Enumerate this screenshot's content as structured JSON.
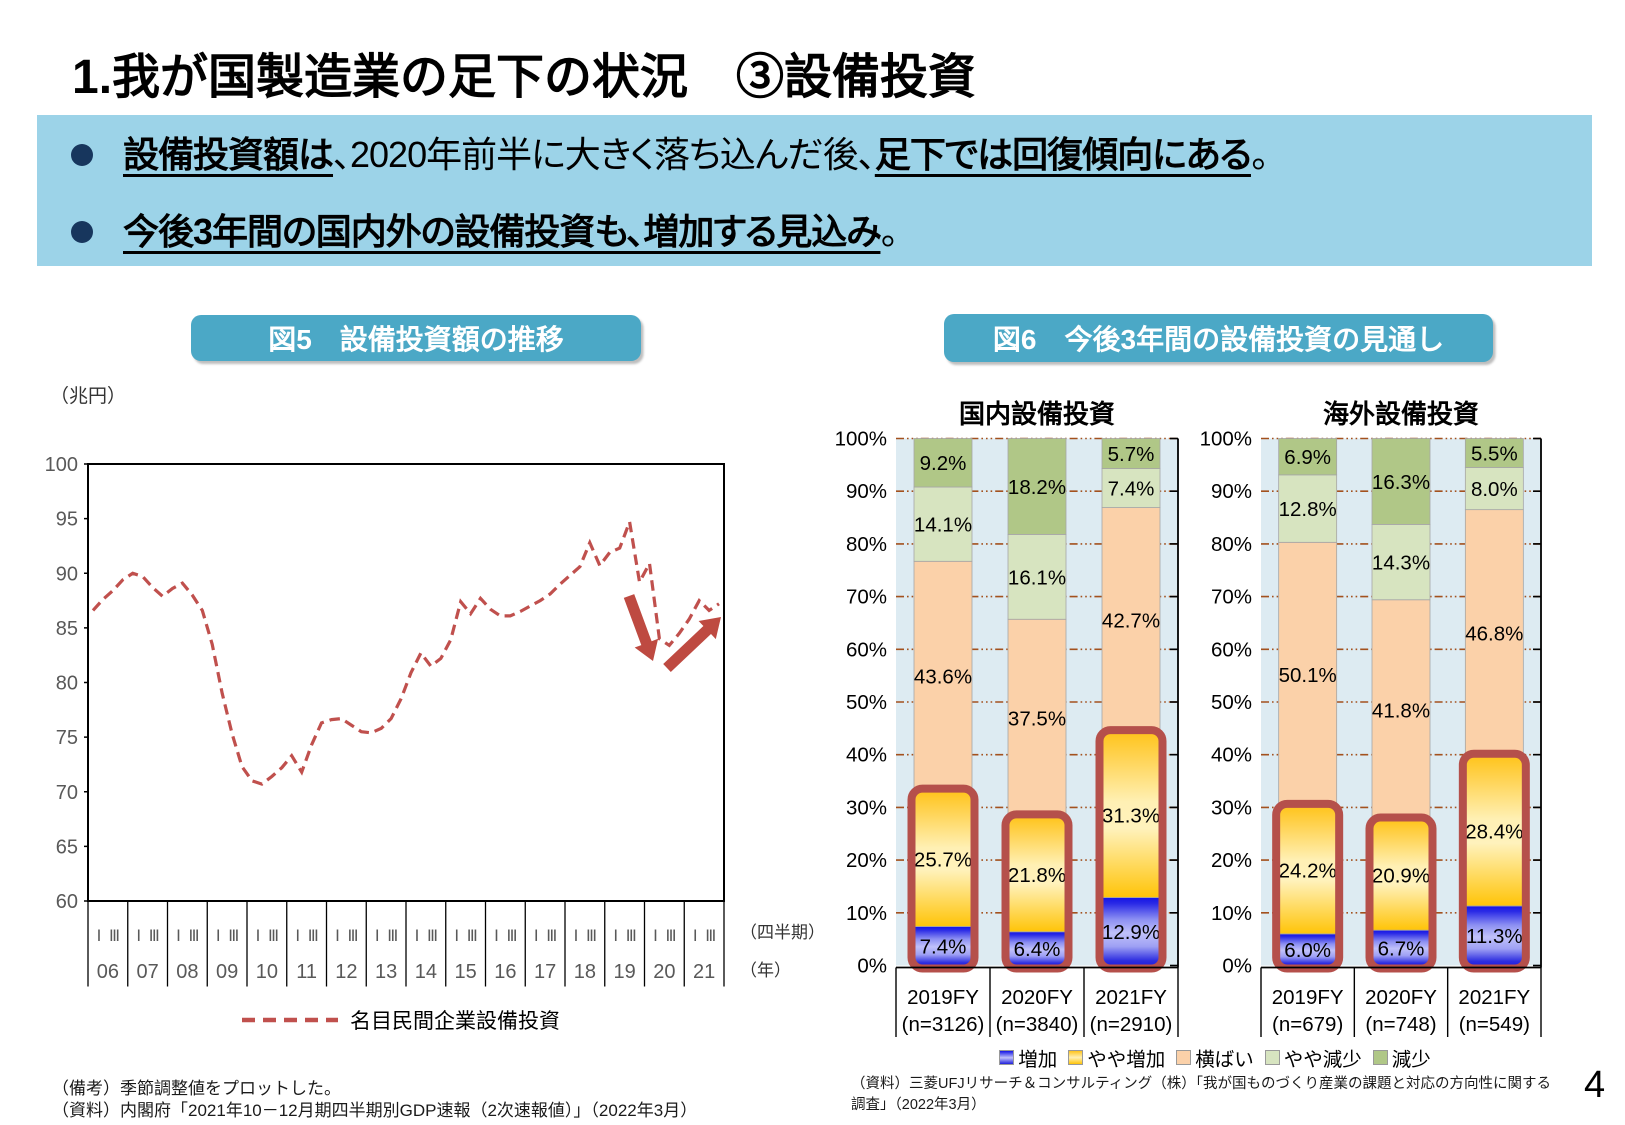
{
  "page": {
    "number": "4",
    "background": "#FFFFFF"
  },
  "header": {
    "title": "1.我が国製造業の足下の状況　③設備投資"
  },
  "summary": {
    "bullets": [
      {
        "segments": [
          {
            "text": "設備投資額は",
            "emphasis": true
          },
          {
            "text": "、2020年前半に大きく落ち込んだ後、",
            "emphasis": false
          },
          {
            "text": "足下では回復傾向にある",
            "emphasis": true
          },
          {
            "text": "。",
            "emphasis": false
          }
        ]
      },
      {
        "segments": [
          {
            "text": "今後3年間の国内外の設備投資も、増加する見込み",
            "emphasis": true
          },
          {
            "text": "。",
            "emphasis": false
          }
        ]
      }
    ]
  },
  "fig5": {
    "header": "図5　設備投資額の推移",
    "unit_label": "（兆円）",
    "axis_quarter_label": "（四半期）",
    "axis_year_label": "（年）",
    "legend_label": "名目民間企業設備投資",
    "notes": [
      "（備考）季節調整値をプロットした。",
      "（資料）内閣府「2021年10－12月期四半期別GDP速報（2次速報値）」（2022年3月）"
    ],
    "chart_data": {
      "type": "line",
      "title": "設備投資額の推移",
      "ylabel": "兆円",
      "ylim": [
        60,
        100
      ],
      "yticks": [
        100,
        95,
        90,
        85,
        80,
        75,
        70,
        65,
        60
      ],
      "x_years": [
        "06",
        "07",
        "08",
        "09",
        "10",
        "11",
        "12",
        "13",
        "14",
        "15",
        "16",
        "17",
        "18",
        "19",
        "20",
        "21"
      ],
      "quarter_tick_labels": [
        "Ⅰ",
        "Ⅲ"
      ],
      "grid": false,
      "series": [
        {
          "name": "名目民間企業設備投資",
          "style": "dashed",
          "color": "#C0504D",
          "values": [
            86.6,
            87.6,
            88.4,
            89.4,
            90.0,
            89.7,
            88.7,
            87.9,
            88.6,
            89.1,
            88.0,
            86.6,
            83.5,
            79.0,
            75.3,
            72.3,
            71.0,
            70.7,
            71.4,
            72.2,
            73.3,
            71.8,
            74.3,
            76.3,
            76.6,
            76.7,
            76.1,
            75.5,
            75.4,
            75.8,
            76.7,
            78.5,
            80.9,
            82.7,
            81.5,
            82.2,
            83.9,
            87.4,
            86.3,
            87.7,
            86.7,
            86.1,
            86.1,
            86.5,
            87.0,
            87.5,
            88.1,
            89.0,
            89.8,
            90.6,
            92.8,
            90.7,
            91.9,
            92.3,
            94.7,
            89.2,
            90.9,
            84.0,
            83.4,
            84.5,
            85.8,
            87.5,
            86.6,
            87.2
          ]
        }
      ],
      "annotations": [
        {
          "type": "arrow",
          "direction": "down"
        },
        {
          "type": "arrow",
          "direction": "up-right"
        }
      ]
    }
  },
  "fig6": {
    "header": "図6　今後3年間の設備投資の見通し",
    "legend": [
      "増加",
      "やや増加",
      "横ばい",
      "やや減少",
      "減少"
    ],
    "source_lines": [
      "（資料）三菱UFJリサーチ＆コンサルティング（株）「我が国ものづくり産業の課題と対応の方向性に関する",
      "調査」（2022年3月）"
    ],
    "chart_data": [
      {
        "type": "bar",
        "stacked": true,
        "title": "国内設備投資",
        "categories": [
          "2019FY",
          "2020FY",
          "2021FY"
        ],
        "sample_sizes": [
          "(n=3126)",
          "(n=3840)",
          "(n=2910)"
        ],
        "ylim": [
          0,
          100
        ],
        "ytick_step": 10,
        "series": [
          {
            "name": "増加",
            "values": [
              7.4,
              6.4,
              12.9
            ]
          },
          {
            "name": "やや増加",
            "values": [
              25.7,
              21.8,
              31.3
            ]
          },
          {
            "name": "横ばい",
            "values": [
              43.6,
              37.5,
              42.7
            ]
          },
          {
            "name": "やや減少",
            "values": [
              14.1,
              16.1,
              7.4
            ]
          },
          {
            "name": "減少",
            "values": [
              9.2,
              18.2,
              5.7
            ]
          }
        ],
        "highlight": "増加＋やや増加"
      },
      {
        "type": "bar",
        "stacked": true,
        "title": "海外設備投資",
        "categories": [
          "2019FY",
          "2020FY",
          "2021FY"
        ],
        "sample_sizes": [
          "(n=679)",
          "(n=748)",
          "(n=549)"
        ],
        "ylim": [
          0,
          100
        ],
        "ytick_step": 10,
        "series": [
          {
            "name": "増加",
            "values": [
              6.0,
              6.7,
              11.3
            ]
          },
          {
            "name": "やや増加",
            "values": [
              24.2,
              20.9,
              28.4
            ]
          },
          {
            "name": "横ばい",
            "values": [
              50.1,
              41.8,
              46.8
            ]
          },
          {
            "name": "やや減少",
            "values": [
              12.8,
              14.3,
              8.0
            ]
          },
          {
            "name": "減少",
            "values": [
              6.9,
              16.3,
              5.5
            ]
          }
        ],
        "highlight": "増加＋やや増加"
      }
    ]
  },
  "colors": {
    "summary_box": "#9CD3E8",
    "bullet_disc": "#17365D",
    "fig_header_bg": "#4BA8C6",
    "line_series": "#C0504D",
    "arrow": "#BE4A41",
    "plot_bg": "#DDEBF2",
    "gridline": "#A3511E",
    "highlight_frame": "#B5504B",
    "segment_横ばい": "#FBD1A9",
    "segment_やや減少": "#D7E4C0",
    "segment_減少": "#B0C787",
    "segment_増加_gradient": [
      "#1414E6",
      "#C0C1FA",
      "#2020DC"
    ],
    "segment_やや増加_gradient": [
      "#FFC41C",
      "#FFF0B4",
      "#FFC408"
    ]
  }
}
